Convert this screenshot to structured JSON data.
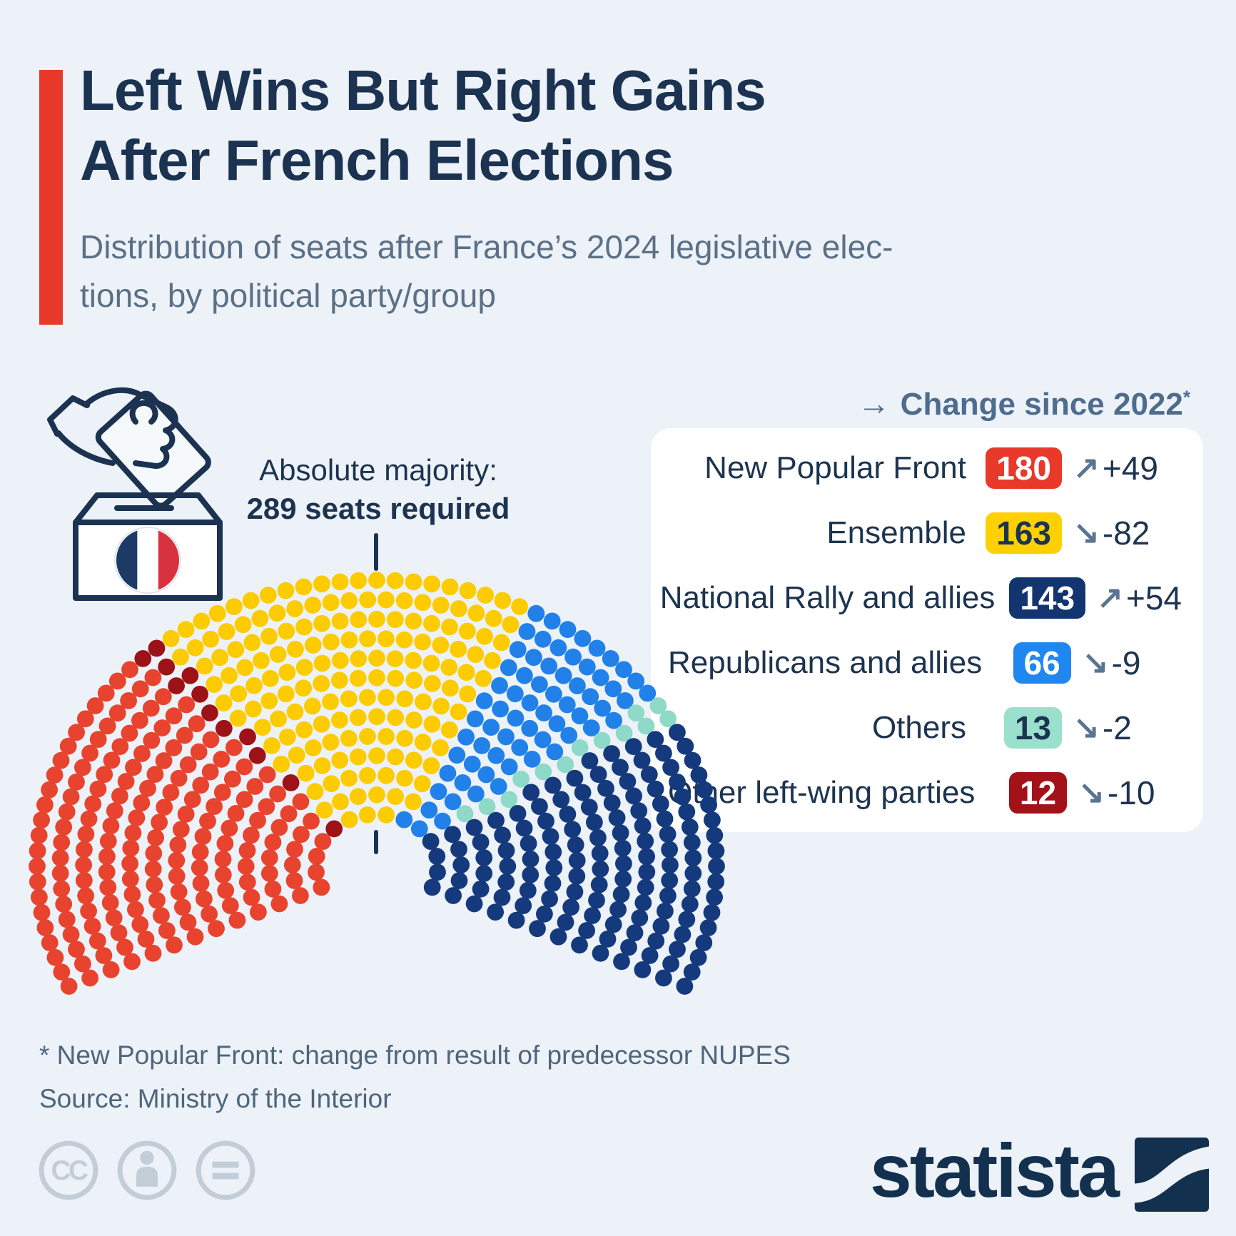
{
  "header": {
    "title_line1": "Left Wins But Right Gains",
    "title_line2": "After French Elections",
    "subtitle_line1": "Distribution of seats after France’s 2024 legislative elec-",
    "subtitle_line2": "tions, by political party/group",
    "accent_color": "#e8392b"
  },
  "majority": {
    "line1": "Absolute majority:",
    "line2": "289 seats required"
  },
  "legend": {
    "header_arrow": "→",
    "header_text": "Change since 2022",
    "header_asterisk": "*",
    "rows": [
      {
        "label": "New Popular Front",
        "seats": "180",
        "badge_bg": "#e8392b",
        "badge_fg": "#ffffff",
        "arrow": "↗",
        "change": "+49"
      },
      {
        "label": "Ensemble",
        "seats": "163",
        "badge_bg": "#fdd101",
        "badge_fg": "#1d3450",
        "arrow": "↘",
        "change": "-82"
      },
      {
        "label": "National Rally and allies",
        "seats": "143",
        "badge_bg": "#12356f",
        "badge_fg": "#ffffff",
        "arrow": "↗",
        "change": "+54"
      },
      {
        "label": "Republicans and allies",
        "seats": "66",
        "badge_bg": "#2187f0",
        "badge_fg": "#ffffff",
        "arrow": "↘",
        "change": "-9"
      },
      {
        "label": "Others",
        "seats": "13",
        "badge_bg": "#9ae0cd",
        "badge_fg": "#1d3450",
        "arrow": "↘",
        "change": "-2"
      },
      {
        "label": "Other left-wing parties",
        "seats": "12",
        "badge_bg": "#a31218",
        "badge_fg": "#ffffff",
        "arrow": "↘",
        "change": "-10"
      }
    ]
  },
  "chart_data": {
    "type": "parliament",
    "total_seats": 577,
    "majority_threshold": 289,
    "title": "Distribution of seats after France’s 2024 legislative elections",
    "parties_in_seating_order": [
      {
        "name": "New Popular Front",
        "seats": 180,
        "color": "#e8432e",
        "change_since_2022": 49
      },
      {
        "name": "Other left-wing parties",
        "seats": 12,
        "color": "#9d1216",
        "change_since_2022": -10
      },
      {
        "name": "Ensemble",
        "seats": 163,
        "color": "#fccb00",
        "change_since_2022": -82
      },
      {
        "name": "Republicans and allies",
        "seats": 66,
        "color": "#2181e9",
        "change_since_2022": -9
      },
      {
        "name": "Others",
        "seats": 13,
        "color": "#8fd9c8",
        "change_since_2022": -2
      },
      {
        "name": "National Rally and allies",
        "seats": 143,
        "color": "#143a7d",
        "change_since_2022": 54
      }
    ],
    "layout": {
      "rows": 13,
      "inner_radius_ratio": 0.18,
      "arc_overhang_deg": 25,
      "legend_position": "right"
    }
  },
  "footnotes": {
    "asterisk_note": "* New Popular Front: change from result of predecessor NUPES",
    "source": "Source: Ministry of the Interior"
  },
  "branding": {
    "logo_text": "statista",
    "license_icons": [
      "cc",
      "by",
      "nd"
    ]
  }
}
